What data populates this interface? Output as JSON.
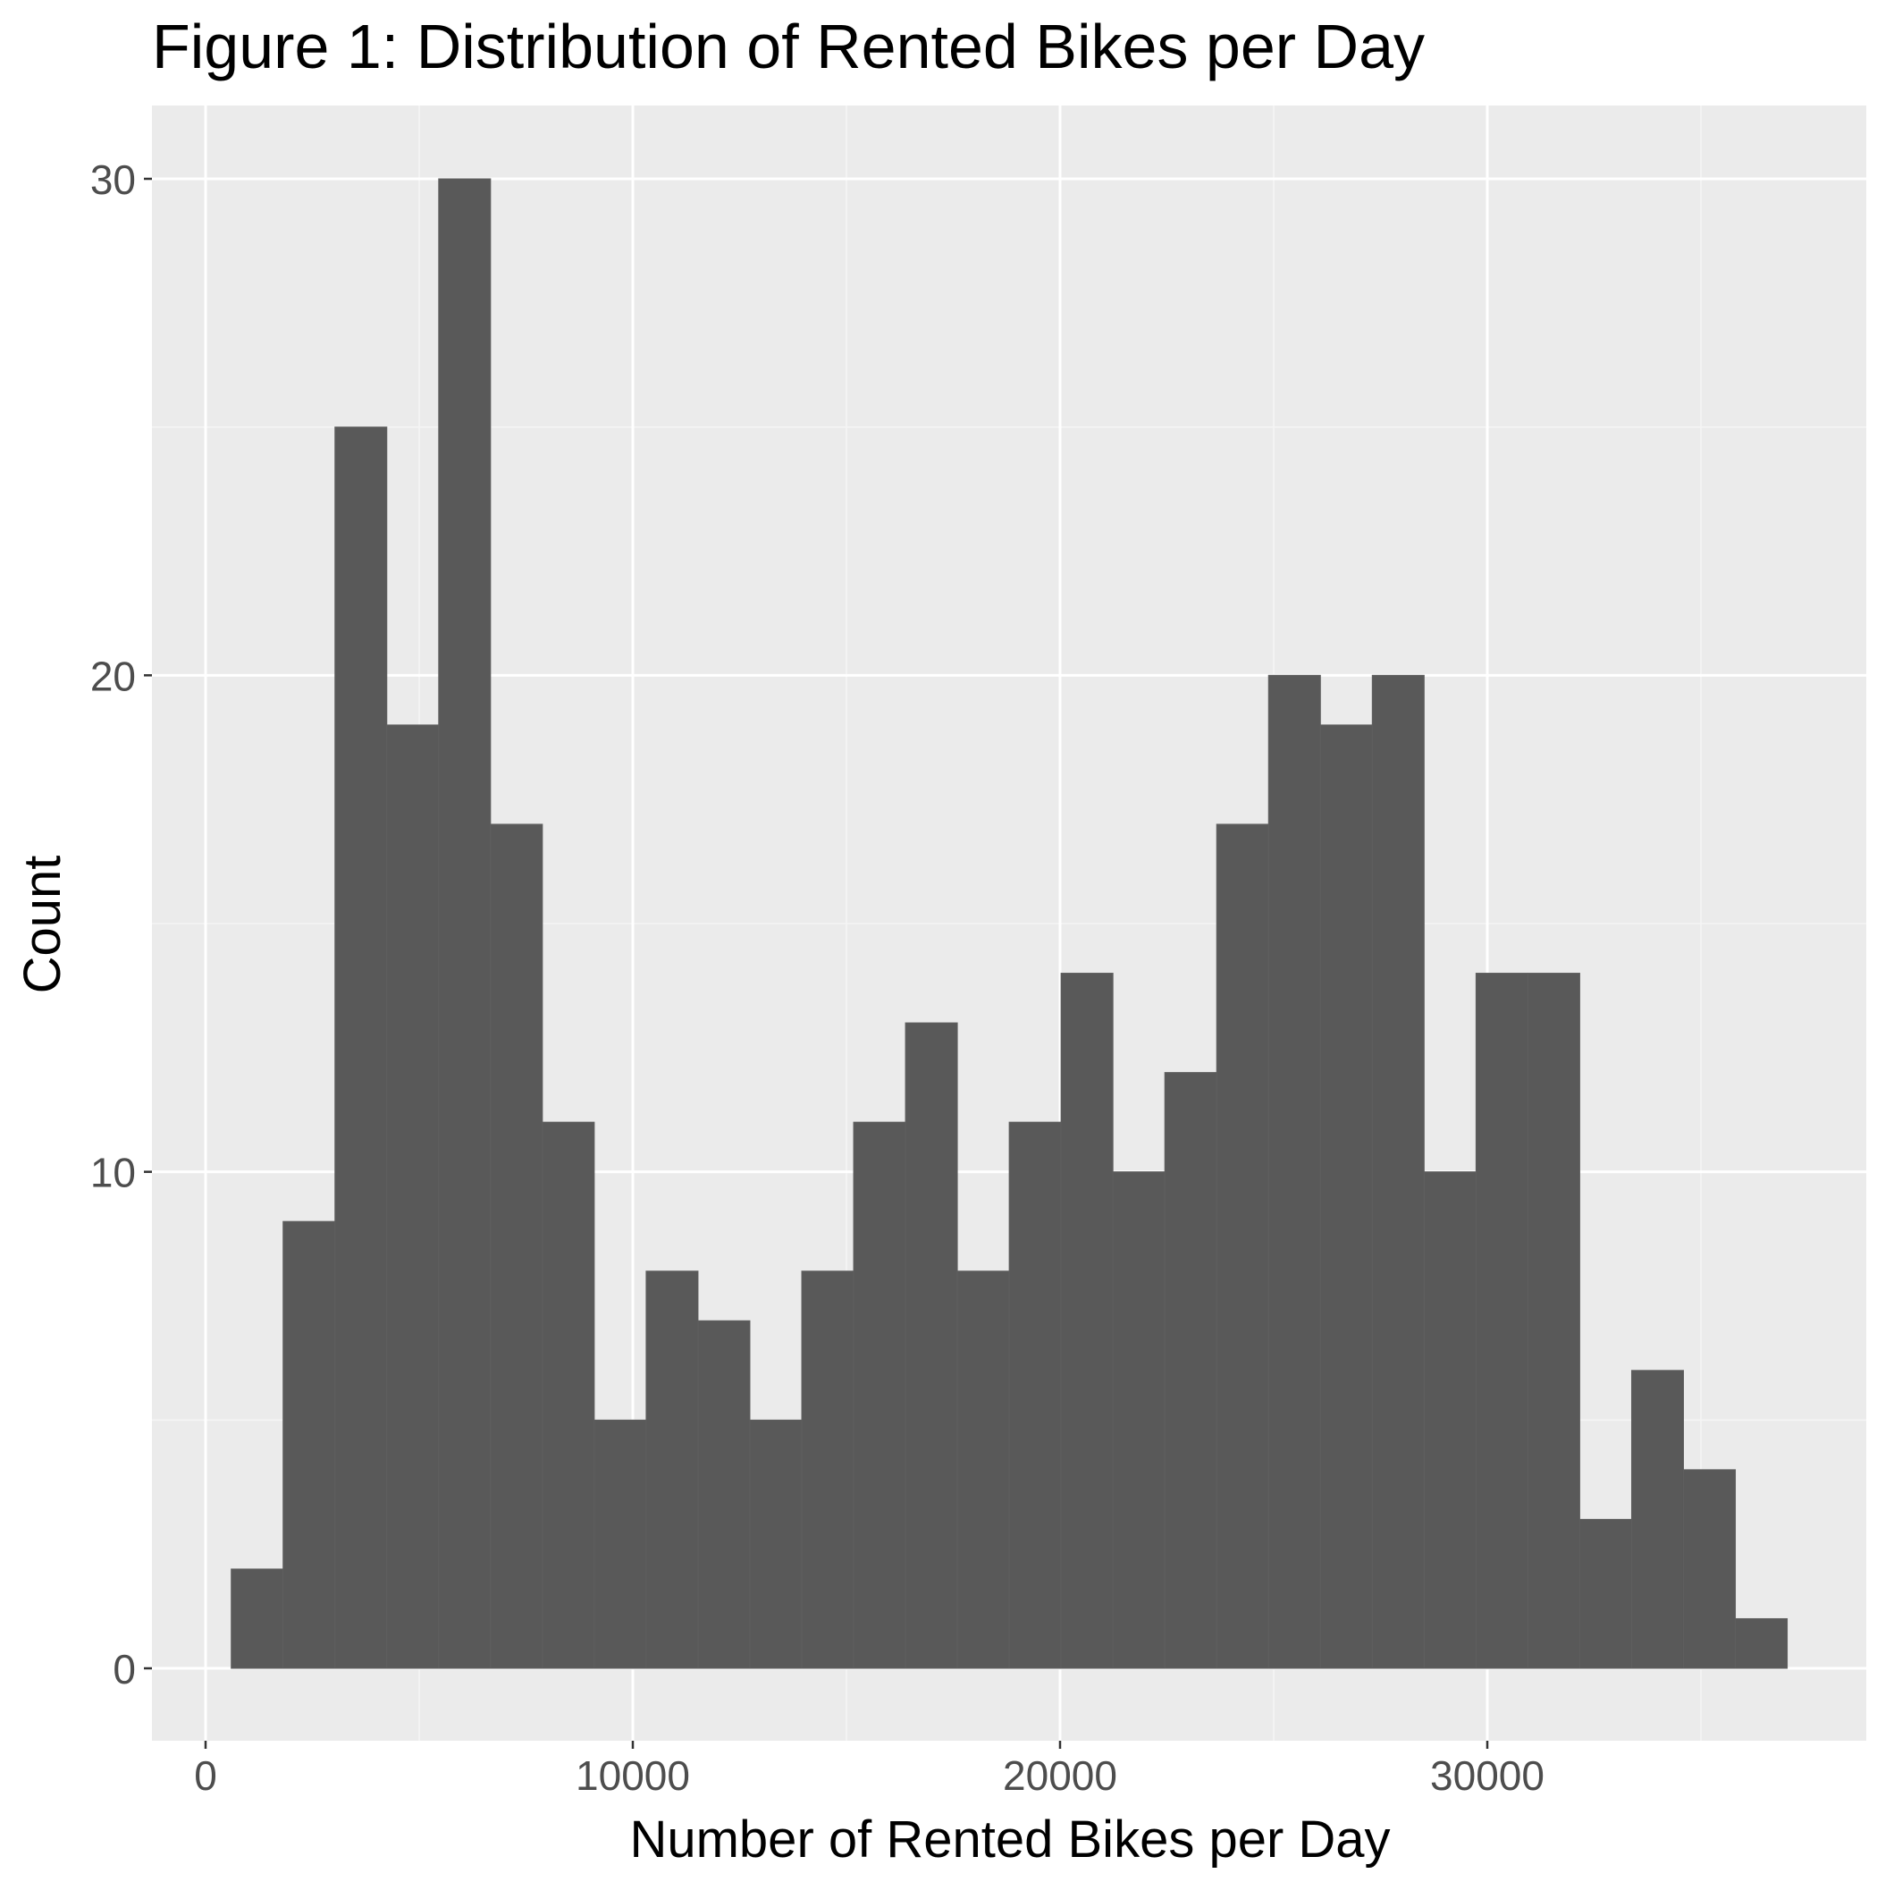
{
  "chart_data": {
    "type": "bar",
    "title": "Figure 1: Distribution of Rented Bikes per Day",
    "xlabel": "Number of Rented Bikes per Day",
    "ylabel": "Count",
    "x_ticks": [
      0,
      10000,
      20000,
      30000
    ],
    "y_ticks": [
      0,
      10,
      20,
      30
    ],
    "xlim": [
      -1240,
      38800
    ],
    "ylim": [
      -1.5,
      31.5
    ],
    "grid": true,
    "legend": "none",
    "bin_width": 1214,
    "bins": [
      {
        "x_start": 600,
        "x_end": 1814,
        "count": 2
      },
      {
        "x_start": 1814,
        "x_end": 3028,
        "count": 9
      },
      {
        "x_start": 3028,
        "x_end": 4242,
        "count": 25
      },
      {
        "x_start": 4242,
        "x_end": 5456,
        "count": 19
      },
      {
        "x_start": 5456,
        "x_end": 6670,
        "count": 30
      },
      {
        "x_start": 6670,
        "x_end": 7884,
        "count": 17
      },
      {
        "x_start": 7884,
        "x_end": 9098,
        "count": 11
      },
      {
        "x_start": 9098,
        "x_end": 10312,
        "count": 5
      },
      {
        "x_start": 10312,
        "x_end": 11526,
        "count": 8
      },
      {
        "x_start": 11526,
        "x_end": 12740,
        "count": 7
      },
      {
        "x_start": 12740,
        "x_end": 13954,
        "count": 5
      },
      {
        "x_start": 13954,
        "x_end": 15168,
        "count": 8
      },
      {
        "x_start": 15168,
        "x_end": 16382,
        "count": 11
      },
      {
        "x_start": 16382,
        "x_end": 17596,
        "count": 13
      },
      {
        "x_start": 17596,
        "x_end": 18810,
        "count": 8
      },
      {
        "x_start": 18810,
        "x_end": 20024,
        "count": 11
      },
      {
        "x_start": 20024,
        "x_end": 21238,
        "count": 14
      },
      {
        "x_start": 21238,
        "x_end": 22452,
        "count": 10
      },
      {
        "x_start": 22452,
        "x_end": 23666,
        "count": 12
      },
      {
        "x_start": 23666,
        "x_end": 24880,
        "count": 17
      },
      {
        "x_start": 24880,
        "x_end": 26094,
        "count": 20
      },
      {
        "x_start": 26094,
        "x_end": 27308,
        "count": 19
      },
      {
        "x_start": 27308,
        "x_end": 28522,
        "count": 20
      },
      {
        "x_start": 28522,
        "x_end": 29736,
        "count": 10
      },
      {
        "x_start": 29736,
        "x_end": 30950,
        "count": 14
      },
      {
        "x_start": 30950,
        "x_end": 32164,
        "count": 14
      },
      {
        "x_start": 32164,
        "x_end": 33378,
        "count": 3
      },
      {
        "x_start": 33378,
        "x_end": 34592,
        "count": 6
      },
      {
        "x_start": 34592,
        "x_end": 35806,
        "count": 4
      },
      {
        "x_start": 35806,
        "x_end": 37020,
        "count": 1
      }
    ],
    "colors": {
      "bar_fill": "#595959",
      "bar_edge": "#5f5f5f",
      "panel_bg": "#ebebeb",
      "grid_major": "#ffffff",
      "grid_minor": "#f5f5f5",
      "tick_text": "#4d4d4d",
      "axis_text": "#000000",
      "tick_mark": "#333333"
    }
  }
}
